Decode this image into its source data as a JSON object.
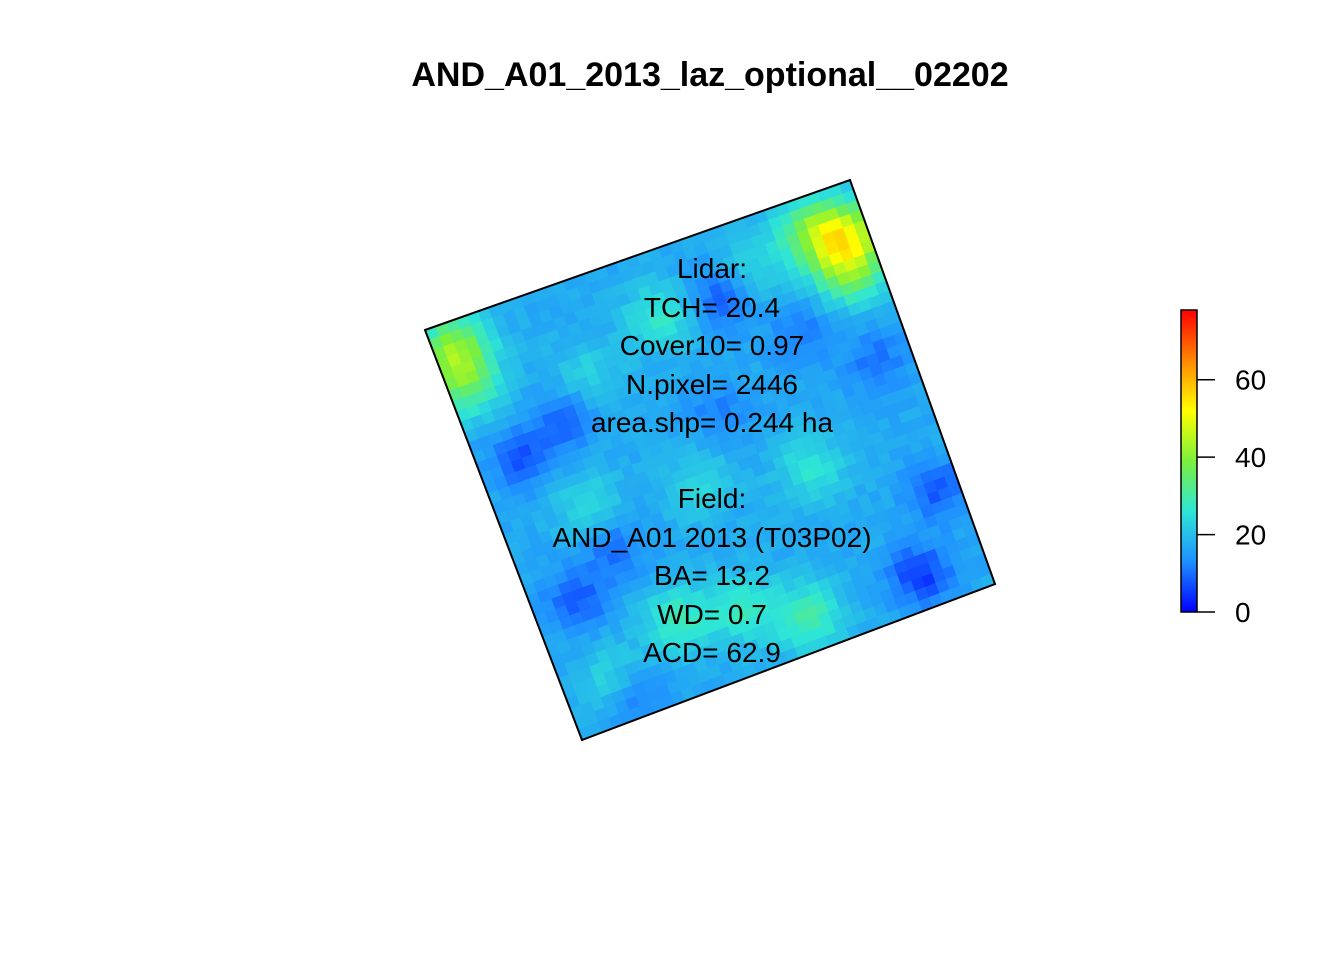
{
  "title": "AND_A01_2013_laz_optional__02202",
  "lidar": {
    "header": "Lidar:",
    "tch": "TCH= 20.4",
    "cover10": "Cover10= 0.97",
    "npixel": "N.pixel= 2446",
    "area": "area.shp= 0.244 ha"
  },
  "field": {
    "header": "Field:",
    "plot": "AND_A01 2013 (T03P02)",
    "ba": "BA= 13.2",
    "wd": "WD= 0.7",
    "acd": "ACD= 62.9"
  },
  "chart_data": {
    "type": "heatmap",
    "title": "AND_A01_2013_laz_optional__02202",
    "colorbar": {
      "ticks": [
        0,
        20,
        40,
        60
      ],
      "range": [
        0,
        78
      ],
      "colors": [
        "#0000ff",
        "#1f8fff",
        "#2ee6d6",
        "#7cf03c",
        "#ffff00",
        "#ff8800",
        "#ff0000"
      ]
    },
    "grid_size": [
      40,
      40
    ],
    "hotspots": [
      {
        "u": 0.04,
        "v": 0.15,
        "value": 33
      },
      {
        "u": 0.05,
        "v": 0.06,
        "value": 38
      },
      {
        "u": 0.88,
        "v": 0.08,
        "value": 34
      },
      {
        "u": 0.95,
        "v": 0.12,
        "value": 44
      },
      {
        "u": 0.93,
        "v": 0.2,
        "value": 36
      },
      {
        "u": 0.5,
        "v": 0.15,
        "value": 27
      },
      {
        "u": 0.72,
        "v": 0.12,
        "value": 25
      },
      {
        "u": 0.3,
        "v": 0.22,
        "value": 23
      },
      {
        "u": 0.3,
        "v": 0.82,
        "value": 29
      },
      {
        "u": 0.45,
        "v": 0.85,
        "value": 28
      },
      {
        "u": 0.58,
        "v": 0.92,
        "value": 30
      },
      {
        "u": 0.7,
        "v": 0.6,
        "value": 26
      },
      {
        "u": 0.45,
        "v": 0.55,
        "value": 24
      },
      {
        "u": 0.2,
        "v": 0.5,
        "value": 24
      },
      {
        "u": 0.12,
        "v": 0.9,
        "value": 25
      }
    ],
    "lowspots": [
      {
        "u": 0.1,
        "v": 0.35,
        "value": 8
      },
      {
        "u": 0.22,
        "v": 0.3,
        "value": 9
      },
      {
        "u": 0.1,
        "v": 0.7,
        "value": 8
      },
      {
        "u": 0.22,
        "v": 0.62,
        "value": 10
      },
      {
        "u": 0.65,
        "v": 0.15,
        "value": 6
      },
      {
        "u": 0.92,
        "v": 0.42,
        "value": 10
      },
      {
        "u": 0.95,
        "v": 0.75,
        "value": 8
      },
      {
        "u": 0.85,
        "v": 0.92,
        "value": 5
      },
      {
        "u": 0.78,
        "v": 0.3,
        "value": 11
      },
      {
        "u": 0.15,
        "v": 0.95,
        "value": 9
      },
      {
        "u": 0.55,
        "v": 0.4,
        "value": 12
      }
    ]
  }
}
